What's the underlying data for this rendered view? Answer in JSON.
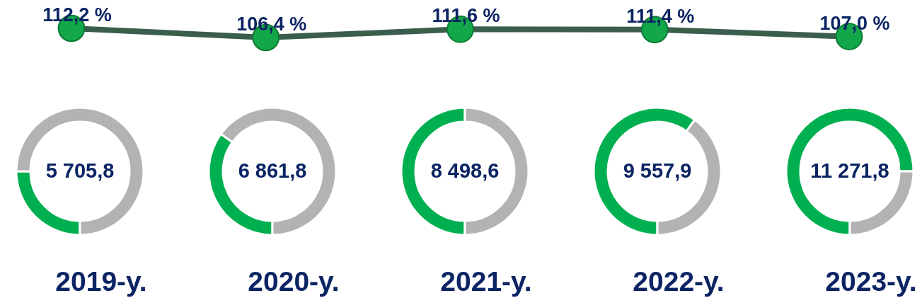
{
  "chart_data": [
    {
      "type": "line",
      "categories": [
        null,
        null,
        null,
        null,
        null
      ],
      "values": [
        112.2,
        106.4,
        111.6,
        111.4,
        107.0
      ],
      "value_labels": [
        "112,2 %",
        "106,4 %",
        "111,6 %",
        "111,4 %",
        "107,0 %"
      ],
      "color": "#3b5e4c",
      "colors": [
        "#12a84a",
        "#12a84a",
        "#12a84a",
        "#12a84a",
        "#12a84a"
      ],
      "marker": "circle",
      "line_style": "solid",
      "tick_labels": false
    },
    {
      "type": "donut",
      "title": "2019-y.",
      "categories": [
        null,
        null
      ],
      "values": [
        25,
        75
      ],
      "colors": [
        "#00b050",
        "#b3b3b3"
      ],
      "annotations": [
        "5 705,8"
      ]
    },
    {
      "type": "donut",
      "title": "2020-y.",
      "categories": [
        null,
        null
      ],
      "values": [
        35,
        65
      ],
      "colors": [
        "#00b050",
        "#b3b3b3"
      ],
      "annotations": [
        "6 861,8"
      ]
    },
    {
      "type": "donut",
      "title": "2021-y.",
      "categories": [
        null,
        null
      ],
      "values": [
        50,
        50
      ],
      "colors": [
        "#00b050",
        "#b3b3b3"
      ],
      "annotations": [
        "8 498,6"
      ]
    },
    {
      "type": "donut",
      "title": "2022-y.",
      "categories": [
        null,
        null
      ],
      "values": [
        60,
        40
      ],
      "colors": [
        "#00b050",
        "#b3b3b3"
      ],
      "annotations": [
        "9 557,9"
      ]
    },
    {
      "type": "donut",
      "title": "2023-y.",
      "categories": [
        null,
        null
      ],
      "values": [
        75,
        25
      ],
      "colors": [
        "#00b050",
        "#b3b3b3"
      ],
      "annotations": [
        "11 271,8"
      ]
    }
  ]
}
